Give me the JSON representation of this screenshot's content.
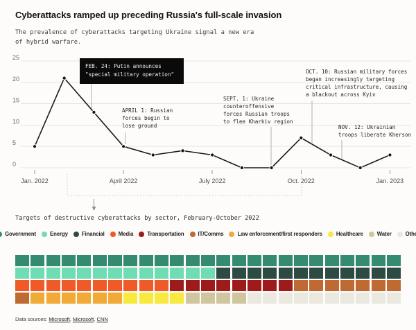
{
  "header": {
    "title": "Cyberattacks ramped up preceding Russia's full-scale invasion",
    "subtitle": "The prevalence of cyberattacks targeting Ukraine signal a new era of hybrid warfare."
  },
  "chart_data": [
    {
      "type": "line",
      "name": "cyberattacks-per-month",
      "x": [
        "Jan. 2022",
        "Feb. 2022",
        "March 2022",
        "April 2022",
        "May 2022",
        "June 2022",
        "July 2022",
        "Aug. 2022",
        "Sept. 2022",
        "Oct. 2022",
        "Nov. 2022",
        "Dec. 2022",
        "Jan. 2023"
      ],
      "values": [
        5,
        21,
        13,
        5,
        3,
        4,
        3,
        0,
        0,
        7,
        3,
        0,
        3
      ],
      "ylim": [
        0,
        25
      ],
      "yticks": [
        0,
        5,
        10,
        15,
        20,
        25
      ],
      "xtick_labels": [
        "Jan. 2022",
        "April 2022",
        "July 2022",
        "Oct. 2022",
        "Jan. 2023"
      ],
      "xtick_indices": [
        0,
        3,
        6,
        9,
        12
      ],
      "grid": true,
      "line_color": "#1b1b1b",
      "annotations": [
        {
          "id": "feb",
          "style": "black-box",
          "lines": [
            "FEB. 24: Putin announces",
            "\"special military operation\""
          ]
        },
        {
          "id": "april",
          "style": "plain",
          "lines": [
            "APRIL 1: Russian",
            "forces begin to",
            "lose ground"
          ]
        },
        {
          "id": "sept",
          "style": "plain",
          "lines": [
            "SEPT. 1: Ukraine",
            "counteroffensive",
            "forces Russian troops",
            "to flee Kharkiv region"
          ]
        },
        {
          "id": "oct",
          "style": "plain",
          "lines": [
            "OCT. 10: Russian military forces",
            "began increasingly targeting",
            "critical infrastructure, causing",
            "a blackout across Kyiv"
          ]
        },
        {
          "id": "nov",
          "style": "plain",
          "lines": [
            "NOV. 12: Ukrainian",
            "troops liberate Kherson"
          ]
        }
      ]
    },
    {
      "type": "waffle",
      "name": "targets-by-sector",
      "title": "Targets of destructive cyberattacks by sector, February-October 2022",
      "columns": 25,
      "rows": 4,
      "sectors": [
        {
          "label": "Government",
          "color": "#348b72",
          "count": 25
        },
        {
          "label": "Energy",
          "color": "#70dcb4",
          "count": 13
        },
        {
          "label": "Financial",
          "color": "#2d4b42",
          "count": 12
        },
        {
          "label": "Media",
          "color": "#ef5a28",
          "count": 10
        },
        {
          "label": "Transportation",
          "color": "#9e1b1c",
          "count": 8
        },
        {
          "label": "IT/Comms",
          "color": "#bf6a33",
          "count": 8
        },
        {
          "label": "Law enforcement/first responders",
          "color": "#efaa38",
          "count": 6
        },
        {
          "label": "Healthcare",
          "color": "#f7e93d",
          "count": 4
        },
        {
          "label": "Water",
          "color": "#cfc6a0",
          "count": 4
        },
        {
          "label": "Other",
          "color": "#ebe8e0",
          "count": 10
        }
      ]
    }
  ],
  "footer": {
    "prefix": "Data sources: ",
    "links": [
      "Microsoft",
      "Microsoft",
      "CNN"
    ]
  }
}
